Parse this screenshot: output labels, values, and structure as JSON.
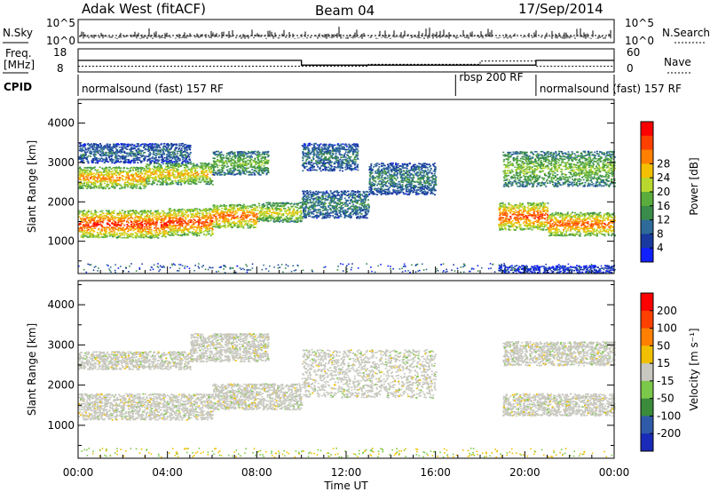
{
  "header": {
    "radar": "Adak West (fitACF)",
    "beam": "Beam 04",
    "date": "17/Sep/2014"
  },
  "status_panels": {
    "nsky_label": "N.Sky",
    "nsky_ticks": [
      "10^5",
      "10^0"
    ],
    "nsearch_label": "N.Search",
    "nsearch_ticks": [
      "10^5",
      "10^0"
    ],
    "freq_label_line1": "Freq.",
    "freq_label_line2": "[MHz]",
    "freq_ticks": [
      "18",
      "8"
    ],
    "nave_label": "Nave",
    "nave_ticks": [
      "60",
      "0"
    ],
    "cpid_label": "CPID",
    "cpid_segments": [
      {
        "label": "normalsound (fast) 157 RF",
        "start_hour": 0
      },
      {
        "label": "rbsp 200 RF",
        "start_hour": 16.9
      },
      {
        "label": "normalsound (fast) 157 RF",
        "start_hour": 20.5
      }
    ],
    "freq_mhz_steps": [
      {
        "start_hour": 0,
        "end_hour": 10.0,
        "value": 13.0
      },
      {
        "start_hour": 10.0,
        "end_hour": 20.5,
        "value": 10.6
      },
      {
        "start_hour": 20.5,
        "end_hour": 24,
        "value": 13.0
      }
    ],
    "nave_steps": [
      {
        "start_hour": 0,
        "end_hour": 13.0,
        "value": 12
      },
      {
        "start_hour": 13.0,
        "end_hour": 18.0,
        "value": 18
      },
      {
        "start_hour": 18.0,
        "end_hour": 20.5,
        "value": 28
      },
      {
        "start_hour": 20.5,
        "end_hour": 24,
        "value": 12
      }
    ]
  },
  "chart_data": [
    {
      "type": "heatmap",
      "name": "power",
      "ylabel": "Slant Range [km]",
      "xlabel": "",
      "xlim": [
        0,
        24
      ],
      "ylim": [
        180,
        4600
      ],
      "y_ticks": [
        1000,
        2000,
        3000,
        4000
      ],
      "colorbar": {
        "label": "Power [dB]",
        "ticks": [
          "4",
          "8",
          "12",
          "16",
          "20",
          "24",
          "28"
        ],
        "range": [
          0,
          32
        ],
        "colors": [
          "#1020ff",
          "#1a3aa0",
          "#2f6b9a",
          "#3a8c4a",
          "#5aad3c",
          "#b8d830",
          "#f2c000",
          "#ff8000",
          "#ff4000",
          "#ff0000"
        ]
      },
      "echo_bands": [
        {
          "start_hour": 0.0,
          "end_hour": 4.0,
          "range_low": 1100,
          "range_high": 1800,
          "power_db": 26
        },
        {
          "start_hour": 4.0,
          "end_hour": 6.0,
          "range_low": 1150,
          "range_high": 1850,
          "power_db": 25
        },
        {
          "start_hour": 6.0,
          "end_hour": 8.0,
          "range_low": 1350,
          "range_high": 1950,
          "power_db": 24
        },
        {
          "start_hour": 8.0,
          "end_hour": 10.0,
          "range_low": 1500,
          "range_high": 2000,
          "power_db": 18
        },
        {
          "start_hour": 0.0,
          "end_hour": 3.0,
          "range_low": 2350,
          "range_high": 2900,
          "power_db": 22
        },
        {
          "start_hour": 3.0,
          "end_hour": 6.0,
          "range_low": 2450,
          "range_high": 3000,
          "power_db": 20
        },
        {
          "start_hour": 6.0,
          "end_hour": 8.5,
          "range_low": 2700,
          "range_high": 3300,
          "power_db": 14
        },
        {
          "start_hour": 0.0,
          "end_hour": 5.0,
          "range_low": 3000,
          "range_high": 3500,
          "power_db": 8
        },
        {
          "start_hour": 10.0,
          "end_hour": 13.0,
          "range_low": 1600,
          "range_high": 2300,
          "power_db": 10
        },
        {
          "start_hour": 13.0,
          "end_hour": 16.0,
          "range_low": 2200,
          "range_high": 3000,
          "power_db": 10
        },
        {
          "start_hour": 10.0,
          "end_hour": 12.5,
          "range_low": 2800,
          "range_high": 3500,
          "power_db": 9
        },
        {
          "start_hour": 18.8,
          "end_hour": 21.0,
          "range_low": 1300,
          "range_high": 2000,
          "power_db": 25
        },
        {
          "start_hour": 21.0,
          "end_hour": 24.0,
          "range_low": 1150,
          "range_high": 1750,
          "power_db": 24
        },
        {
          "start_hour": 19.0,
          "end_hour": 24.0,
          "range_low": 2400,
          "range_high": 3300,
          "power_db": 15
        },
        {
          "start_hour": 18.8,
          "end_hour": 24.0,
          "range_low": 200,
          "range_high": 400,
          "power_db": 4
        }
      ]
    },
    {
      "type": "heatmap",
      "name": "velocity",
      "ylabel": "Slant Range [km]",
      "xlabel": "Time UT",
      "xlim": [
        0,
        24
      ],
      "ylim": [
        180,
        4600
      ],
      "x_ticks": [
        "00:00",
        "04:00",
        "08:00",
        "12:00",
        "16:00",
        "20:00",
        "00:00"
      ],
      "y_ticks": [
        1000,
        2000,
        3000,
        4000
      ],
      "colorbar": {
        "label": "Velocity [m s⁻¹]",
        "ticks": [
          "200",
          "100",
          "50",
          "15",
          "-15",
          "-50",
          "-100",
          "-200"
        ],
        "colors": [
          "#1a2ab8",
          "#2f5aa8",
          "#3a8c3a",
          "#7cc84a",
          "#c8c8c0",
          "#f0c000",
          "#ff8000",
          "#ff4000",
          "#ff0000"
        ]
      },
      "echo_bands": [
        {
          "start_hour": 0.0,
          "end_hour": 6.0,
          "range_low": 1150,
          "range_high": 1800,
          "velocity": 0
        },
        {
          "start_hour": 6.0,
          "end_hour": 10.0,
          "range_low": 1400,
          "range_high": 2050,
          "velocity": 0
        },
        {
          "start_hour": 0.0,
          "end_hour": 5.0,
          "range_low": 2400,
          "range_high": 2850,
          "velocity": 0
        },
        {
          "start_hour": 5.0,
          "end_hour": 8.5,
          "range_low": 2600,
          "range_high": 3300,
          "velocity": 0
        },
        {
          "start_hour": 10.0,
          "end_hour": 16.0,
          "range_low": 1700,
          "range_high": 2900,
          "velocity": 0
        },
        {
          "start_hour": 19.0,
          "end_hour": 24.0,
          "range_low": 1250,
          "range_high": 1800,
          "velocity": 0
        },
        {
          "start_hour": 19.0,
          "end_hour": 24.0,
          "range_low": 2500,
          "range_high": 3100,
          "velocity": 0
        }
      ]
    }
  ]
}
